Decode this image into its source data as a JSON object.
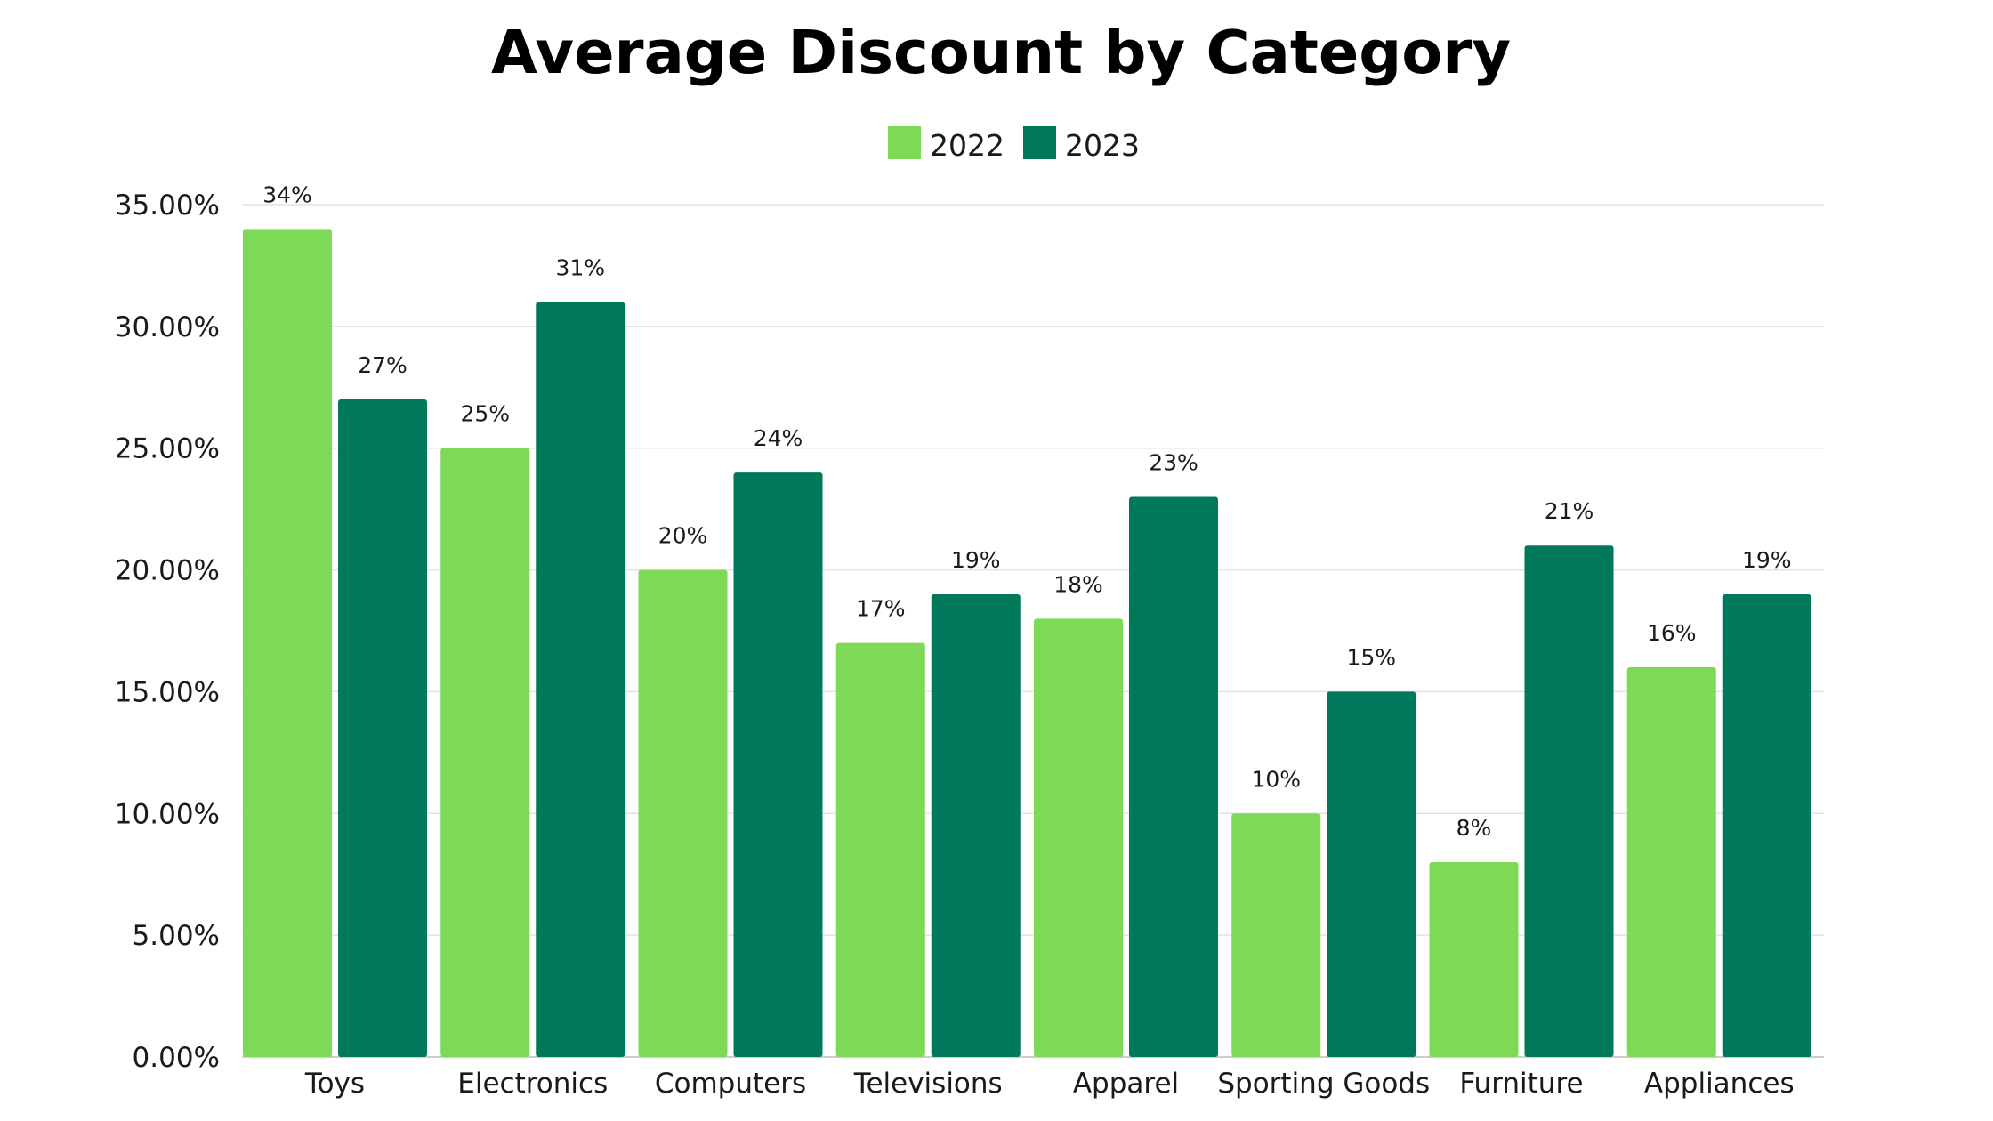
{
  "chart_data": {
    "type": "bar",
    "title": "Average Discount by Category",
    "xlabel": "",
    "ylabel": "",
    "categories": [
      "Toys",
      "Electronics",
      "Computers",
      "Televisions",
      "Apparel",
      "Sporting Goods",
      "Furniture",
      "Appliances"
    ],
    "series": [
      {
        "name": "2022",
        "color": "#7ed957",
        "values": [
          34,
          25,
          20,
          17,
          18,
          10,
          8,
          16
        ],
        "labels": [
          "34%",
          "25%",
          "20%",
          "17%",
          "18%",
          "10%",
          "8%",
          "16%"
        ]
      },
      {
        "name": "2023",
        "color": "#00785a",
        "values": [
          27,
          31,
          24,
          19,
          23,
          15,
          21,
          19
        ],
        "labels": [
          "27%",
          "31%",
          "24%",
          "19%",
          "23%",
          "15%",
          "21%",
          "19%"
        ]
      }
    ],
    "ylim": [
      0,
      35
    ],
    "yticks": [
      0,
      5,
      10,
      15,
      20,
      25,
      30,
      35
    ],
    "ytick_labels": [
      "0.00%",
      "5.00%",
      "10.00%",
      "15.00%",
      "20.00%",
      "25.00%",
      "30.00%",
      "35.00%"
    ],
    "grid": true,
    "legend_position": "top-center"
  }
}
